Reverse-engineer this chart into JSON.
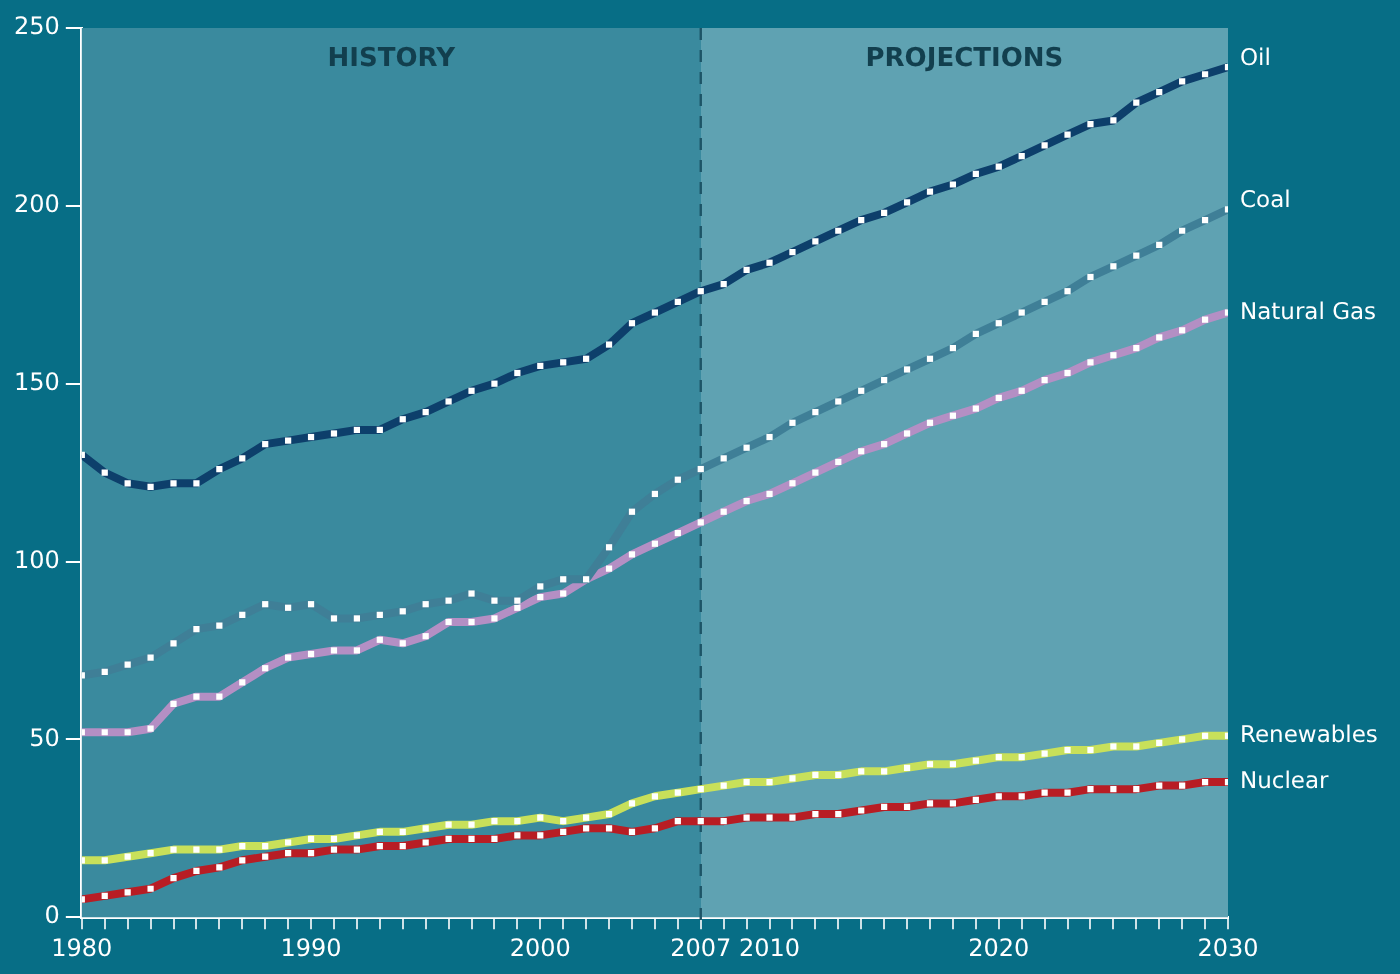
{
  "chart_data": {
    "type": "line",
    "x": [
      1980,
      1981,
      1982,
      1983,
      1984,
      1985,
      1986,
      1987,
      1988,
      1989,
      1990,
      1991,
      1992,
      1993,
      1994,
      1995,
      1996,
      1997,
      1998,
      1999,
      2000,
      2001,
      2002,
      2003,
      2004,
      2005,
      2006,
      2007,
      2008,
      2009,
      2010,
      2011,
      2012,
      2013,
      2014,
      2015,
      2016,
      2017,
      2018,
      2019,
      2020,
      2021,
      2022,
      2023,
      2024,
      2025,
      2026,
      2027,
      2028,
      2029,
      2030
    ],
    "series": [
      {
        "name": "Oil",
        "color": "#0d3f6b",
        "values": [
          130,
          125,
          122,
          121,
          122,
          122,
          126,
          129,
          133,
          134,
          135,
          136,
          137,
          137,
          140,
          142,
          145,
          148,
          150,
          153,
          155,
          156,
          157,
          161,
          167,
          170,
          173,
          176,
          178,
          182,
          184,
          187,
          190,
          193,
          196,
          198,
          201,
          204,
          206,
          209,
          211,
          214,
          217,
          220,
          223,
          224,
          229,
          232,
          235,
          237,
          239
        ]
      },
      {
        "name": "Coal",
        "color": "#3f7f97",
        "values": [
          68,
          69,
          71,
          73,
          77,
          81,
          82,
          85,
          88,
          87,
          88,
          84,
          84,
          85,
          86,
          88,
          89,
          91,
          89,
          89,
          93,
          95,
          95,
          104,
          114,
          119,
          123,
          126,
          129,
          132,
          135,
          139,
          142,
          145,
          148,
          151,
          154,
          157,
          160,
          164,
          167,
          170,
          173,
          176,
          180,
          183,
          186,
          189,
          193,
          196,
          199
        ]
      },
      {
        "name": "Natural Gas",
        "color": "#b48fc4",
        "values": [
          52,
          52,
          52,
          53,
          60,
          62,
          62,
          66,
          70,
          73,
          74,
          75,
          75,
          78,
          77,
          79,
          83,
          83,
          84,
          87,
          90,
          91,
          95,
          98,
          102,
          105,
          108,
          111,
          114,
          117,
          119,
          122,
          125,
          128,
          131,
          133,
          136,
          139,
          141,
          143,
          146,
          148,
          151,
          153,
          156,
          158,
          160,
          163,
          165,
          168,
          170
        ]
      },
      {
        "name": "Renewables",
        "color": "#c8e05a",
        "values": [
          16,
          16,
          17,
          18,
          19,
          19,
          19,
          20,
          20,
          21,
          22,
          22,
          23,
          24,
          24,
          25,
          26,
          26,
          27,
          27,
          28,
          27,
          28,
          29,
          32,
          34,
          35,
          36,
          37,
          38,
          38,
          39,
          40,
          40,
          41,
          41,
          42,
          43,
          43,
          44,
          45,
          45,
          46,
          47,
          47,
          48,
          48,
          49,
          50,
          51,
          51
        ]
      },
      {
        "name": "Nuclear",
        "color": "#b81d24",
        "values": [
          5,
          6,
          7,
          8,
          11,
          13,
          14,
          16,
          17,
          18,
          18,
          19,
          19,
          20,
          20,
          21,
          22,
          22,
          22,
          23,
          23,
          24,
          25,
          25,
          24,
          25,
          27,
          27,
          27,
          28,
          28,
          28,
          29,
          29,
          30,
          31,
          31,
          32,
          32,
          33,
          34,
          34,
          35,
          35,
          36,
          36,
          36,
          37,
          37,
          38,
          38
        ]
      }
    ],
    "xlim": [
      1980,
      2030
    ],
    "xticks": [
      1980,
      {
        "value": 1981,
        "label": null
      },
      {
        "value": 1982,
        "label": null
      },
      {
        "value": 1983,
        "label": null
      },
      {
        "value": 1984,
        "label": null
      },
      {
        "value": 1985,
        "label": null
      },
      {
        "value": 1986,
        "label": null
      },
      {
        "value": 1987,
        "label": null
      },
      {
        "value": 1988,
        "label": null
      },
      {
        "value": 1989,
        "label": null
      },
      1990,
      {
        "value": 1991,
        "label": null
      },
      {
        "value": 1992,
        "label": null
      },
      {
        "value": 1993,
        "label": null
      },
      {
        "value": 1994,
        "label": null
      },
      {
        "value": 1995,
        "label": null
      },
      {
        "value": 1996,
        "label": null
      },
      {
        "value": 1997,
        "label": null
      },
      {
        "value": 1998,
        "label": null
      },
      {
        "value": 1999,
        "label": null
      },
      2000,
      {
        "value": 2001,
        "label": null
      },
      {
        "value": 2002,
        "label": null
      },
      {
        "value": 2003,
        "label": null
      },
      {
        "value": 2004,
        "label": null
      },
      {
        "value": 2005,
        "label": null
      },
      {
        "value": 2006,
        "label": null
      },
      2007,
      {
        "value": 2008,
        "label": null
      },
      {
        "value": 2009,
        "label": null
      },
      2010,
      {
        "value": 2011,
        "label": null
      },
      {
        "value": 2012,
        "label": null
      },
      {
        "value": 2013,
        "label": null
      },
      {
        "value": 2014,
        "label": null
      },
      {
        "value": 2015,
        "label": null
      },
      {
        "value": 2016,
        "label": null
      },
      {
        "value": 2017,
        "label": null
      },
      {
        "value": 2018,
        "label": null
      },
      {
        "value": 2019,
        "label": null
      },
      2020,
      {
        "value": 2021,
        "label": null
      },
      {
        "value": 2022,
        "label": null
      },
      {
        "value": 2023,
        "label": null
      },
      {
        "value": 2024,
        "label": null
      },
      {
        "value": 2025,
        "label": null
      },
      {
        "value": 2026,
        "label": null
      },
      {
        "value": 2027,
        "label": null
      },
      {
        "value": 2028,
        "label": null
      },
      {
        "value": 2029,
        "label": null
      },
      2030
    ],
    "ylim": [
      0,
      250
    ],
    "yticks": [
      0,
      50,
      100,
      150,
      200,
      250
    ],
    "bands": [
      {
        "axis": "x",
        "from": 1980,
        "to": 2007,
        "label": "HISTORY",
        "color": "#3a8a9e"
      },
      {
        "axis": "x",
        "from": 2007,
        "to": 2030,
        "label": "PROJECTIONS",
        "color": "#5fa2b2"
      }
    ],
    "ref_lines": [
      {
        "axis": "x",
        "value": 2007,
        "color": "#1d5466",
        "line_style": "dashed"
      }
    ],
    "marker": "square",
    "line_style": "solid",
    "grid": false,
    "legend": false
  }
}
